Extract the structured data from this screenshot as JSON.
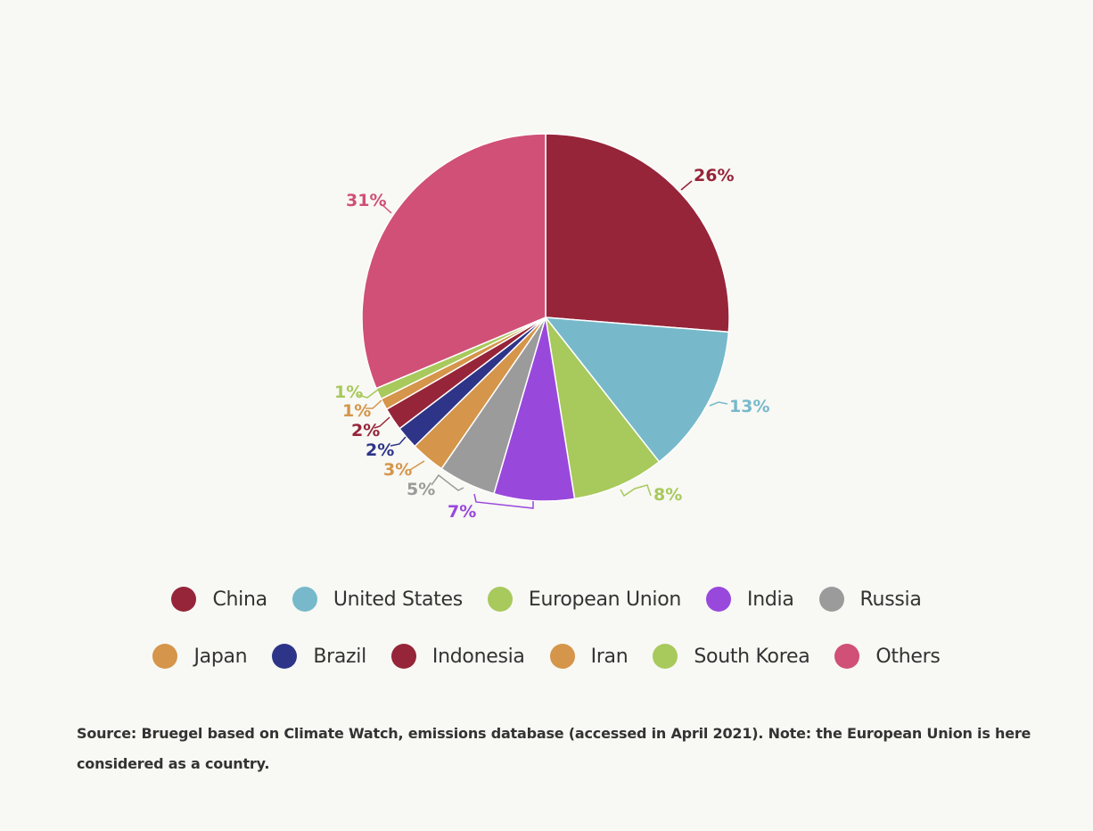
{
  "chart_data": {
    "type": "pie",
    "start_angle_deg": 0,
    "direction": "clockwise",
    "slices": [
      {
        "name": "China",
        "value": 26,
        "label": "26%",
        "color": "#962539"
      },
      {
        "name": "United States",
        "value": 13,
        "label": "13%",
        "color": "#77b9cb"
      },
      {
        "name": "European Union",
        "value": 8,
        "label": "8%",
        "color": "#a8c95c"
      },
      {
        "name": "India",
        "value": 7,
        "label": "7%",
        "color": "#9948dc"
      },
      {
        "name": "Russia",
        "value": 5,
        "label": "5%",
        "color": "#9b9b9b"
      },
      {
        "name": "Japan",
        "value": 3,
        "label": "3%",
        "color": "#d5954a"
      },
      {
        "name": "Brazil",
        "value": 2,
        "label": "2%",
        "color": "#2e3588"
      },
      {
        "name": "Indonesia",
        "value": 2,
        "label": "2%",
        "color": "#962539"
      },
      {
        "name": "Iran",
        "value": 1,
        "label": "1%",
        "color": "#d5954a"
      },
      {
        "name": "South Korea",
        "value": 1,
        "label": "1%",
        "color": "#a8c95c"
      },
      {
        "name": "Others",
        "value": 31,
        "label": "31%",
        "color": "#d05077"
      }
    ],
    "legend_placement": "bottom"
  },
  "source_text": "Source: Bruegel based on Climate Watch, emissions database (accessed in April 2021). Note: the European Union is here considered as a country."
}
